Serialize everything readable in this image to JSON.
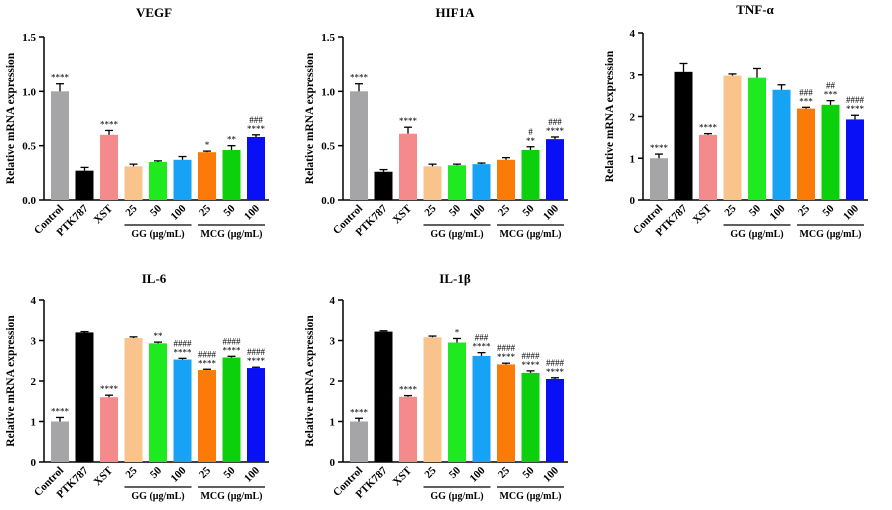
{
  "chart_data": [
    {
      "type": "bar",
      "title": "VEGF",
      "ylabel": "Relative mRNA expression",
      "ylim": [
        0,
        1.5
      ],
      "yticks": [
        0.0,
        0.5,
        1.0,
        1.5
      ],
      "ytick_labels": [
        "0.0",
        "0.5",
        "1.0",
        "1.5"
      ],
      "categories": [
        "Control",
        "PTK787",
        "XST",
        "25",
        "50",
        "100",
        "25",
        "50",
        "100"
      ],
      "groups": [
        {
          "label": "GG (μg/mL)",
          "categories": [
            "25",
            "50",
            "100"
          ]
        },
        {
          "label": "MCG (μg/mL)",
          "categories": [
            "25",
            "50",
            "100"
          ]
        }
      ],
      "values": [
        1.0,
        0.27,
        0.6,
        0.31,
        0.35,
        0.37,
        0.44,
        0.46,
        0.58
      ],
      "errors": [
        0.07,
        0.03,
        0.04,
        0.02,
        0.01,
        0.03,
        0.01,
        0.04,
        0.02
      ],
      "annotations": [
        [
          "****"
        ],
        [],
        [
          "****"
        ],
        [],
        [],
        [],
        [
          "*"
        ],
        [
          "**"
        ],
        [
          "###",
          "****"
        ]
      ]
    },
    {
      "type": "bar",
      "title": "HIF1A",
      "ylabel": "Relative mRNA expression",
      "ylim": [
        0,
        1.5
      ],
      "yticks": [
        0.0,
        0.5,
        1.0,
        1.5
      ],
      "ytick_labels": [
        "0.0",
        "0.5",
        "1.0",
        "1.5"
      ],
      "categories": [
        "Control",
        "PTK787",
        "XST",
        "25",
        "50",
        "100",
        "25",
        "50",
        "100"
      ],
      "groups": [
        {
          "label": "GG (μg/mL)",
          "categories": [
            "25",
            "50",
            "100"
          ]
        },
        {
          "label": "MCG (μg/mL)",
          "categories": [
            "25",
            "50",
            "100"
          ]
        }
      ],
      "values": [
        1.0,
        0.26,
        0.61,
        0.31,
        0.32,
        0.33,
        0.37,
        0.46,
        0.56
      ],
      "errors": [
        0.07,
        0.02,
        0.06,
        0.02,
        0.01,
        0.01,
        0.02,
        0.03,
        0.02
      ],
      "annotations": [
        [
          "****"
        ],
        [],
        [
          "****"
        ],
        [],
        [],
        [],
        [],
        [
          "#",
          "**"
        ],
        [
          "###",
          "****"
        ]
      ]
    },
    {
      "type": "bar",
      "title": "TNF-α",
      "ylabel": "Relative mRNA expression",
      "ylim": [
        0,
        4
      ],
      "yticks": [
        0,
        1,
        2,
        3,
        4
      ],
      "ytick_labels": [
        "0",
        "1",
        "2",
        "3",
        "4"
      ],
      "categories": [
        "Control",
        "PTK787",
        "XST",
        "25",
        "50",
        "100",
        "25",
        "50",
        "100"
      ],
      "groups": [
        {
          "label": "GG (μg/mL)",
          "categories": [
            "25",
            "50",
            "100"
          ]
        },
        {
          "label": "MCG (μg/mL)",
          "categories": [
            "25",
            "50",
            "100"
          ]
        }
      ],
      "values": [
        1.0,
        3.07,
        1.56,
        2.98,
        2.93,
        2.64,
        2.19,
        2.28,
        1.93
      ],
      "errors": [
        0.1,
        0.2,
        0.03,
        0.04,
        0.22,
        0.12,
        0.03,
        0.1,
        0.1
      ],
      "annotations": [
        [
          "****"
        ],
        [],
        [
          "****"
        ],
        [],
        [],
        [],
        [
          "###",
          "***"
        ],
        [
          "##",
          "***"
        ],
        [
          "####",
          "****"
        ]
      ]
    },
    {
      "type": "bar",
      "title": "IL-6",
      "ylabel": "Relative mRNA expression",
      "ylim": [
        0,
        4
      ],
      "yticks": [
        0,
        1,
        2,
        3,
        4
      ],
      "ytick_labels": [
        "0",
        "1",
        "2",
        "3",
        "4"
      ],
      "categories": [
        "Control",
        "PTK787",
        "XST",
        "25",
        "50",
        "100",
        "25",
        "50",
        "100"
      ],
      "groups": [
        {
          "label": "GG (μg/mL)",
          "categories": [
            "25",
            "50",
            "100"
          ]
        },
        {
          "label": "MCG (μg/mL)",
          "categories": [
            "25",
            "50",
            "100"
          ]
        }
      ],
      "values": [
        1.0,
        3.2,
        1.6,
        3.06,
        2.93,
        2.53,
        2.27,
        2.58,
        2.32
      ],
      "errors": [
        0.1,
        0.02,
        0.05,
        0.03,
        0.03,
        0.03,
        0.02,
        0.03,
        0.02
      ],
      "annotations": [
        [
          "****"
        ],
        [],
        [
          "****"
        ],
        [],
        [
          "**"
        ],
        [
          "####",
          "****"
        ],
        [
          "####",
          "****"
        ],
        [
          "####",
          "****"
        ],
        [
          "####",
          "****"
        ]
      ]
    },
    {
      "type": "bar",
      "title": "IL-1β",
      "ylabel": "Relative mRNA expression",
      "ylim": [
        0,
        4
      ],
      "yticks": [
        0,
        1,
        2,
        3,
        4
      ],
      "ytick_labels": [
        "0",
        "1",
        "2",
        "3",
        "4"
      ],
      "categories": [
        "Control",
        "PTK787",
        "XST",
        "25",
        "50",
        "100",
        "25",
        "50",
        "100"
      ],
      "groups": [
        {
          "label": "GG (μg/mL)",
          "categories": [
            "25",
            "50",
            "100"
          ]
        },
        {
          "label": "MCG (μg/mL)",
          "categories": [
            "25",
            "50",
            "100"
          ]
        }
      ],
      "values": [
        1.0,
        3.22,
        1.61,
        3.08,
        2.95,
        2.62,
        2.41,
        2.2,
        2.05
      ],
      "errors": [
        0.08,
        0.02,
        0.03,
        0.03,
        0.1,
        0.08,
        0.03,
        0.05,
        0.03
      ],
      "annotations": [
        [
          "****"
        ],
        [],
        [
          "****"
        ],
        [],
        [
          "*"
        ],
        [
          "###",
          "****"
        ],
        [
          "####",
          "****"
        ],
        [
          "####",
          "****"
        ],
        [
          "####",
          "****"
        ]
      ]
    }
  ],
  "colors": {
    "bars": [
      "#a5a5a8",
      "#000000",
      "#f58a8c",
      "#f8c48c",
      "#1fea1f",
      "#16a3f5",
      "#fc7b08",
      "#0bd00b",
      "#0a10f5"
    ],
    "axis": "#000000",
    "text": "#000000"
  }
}
